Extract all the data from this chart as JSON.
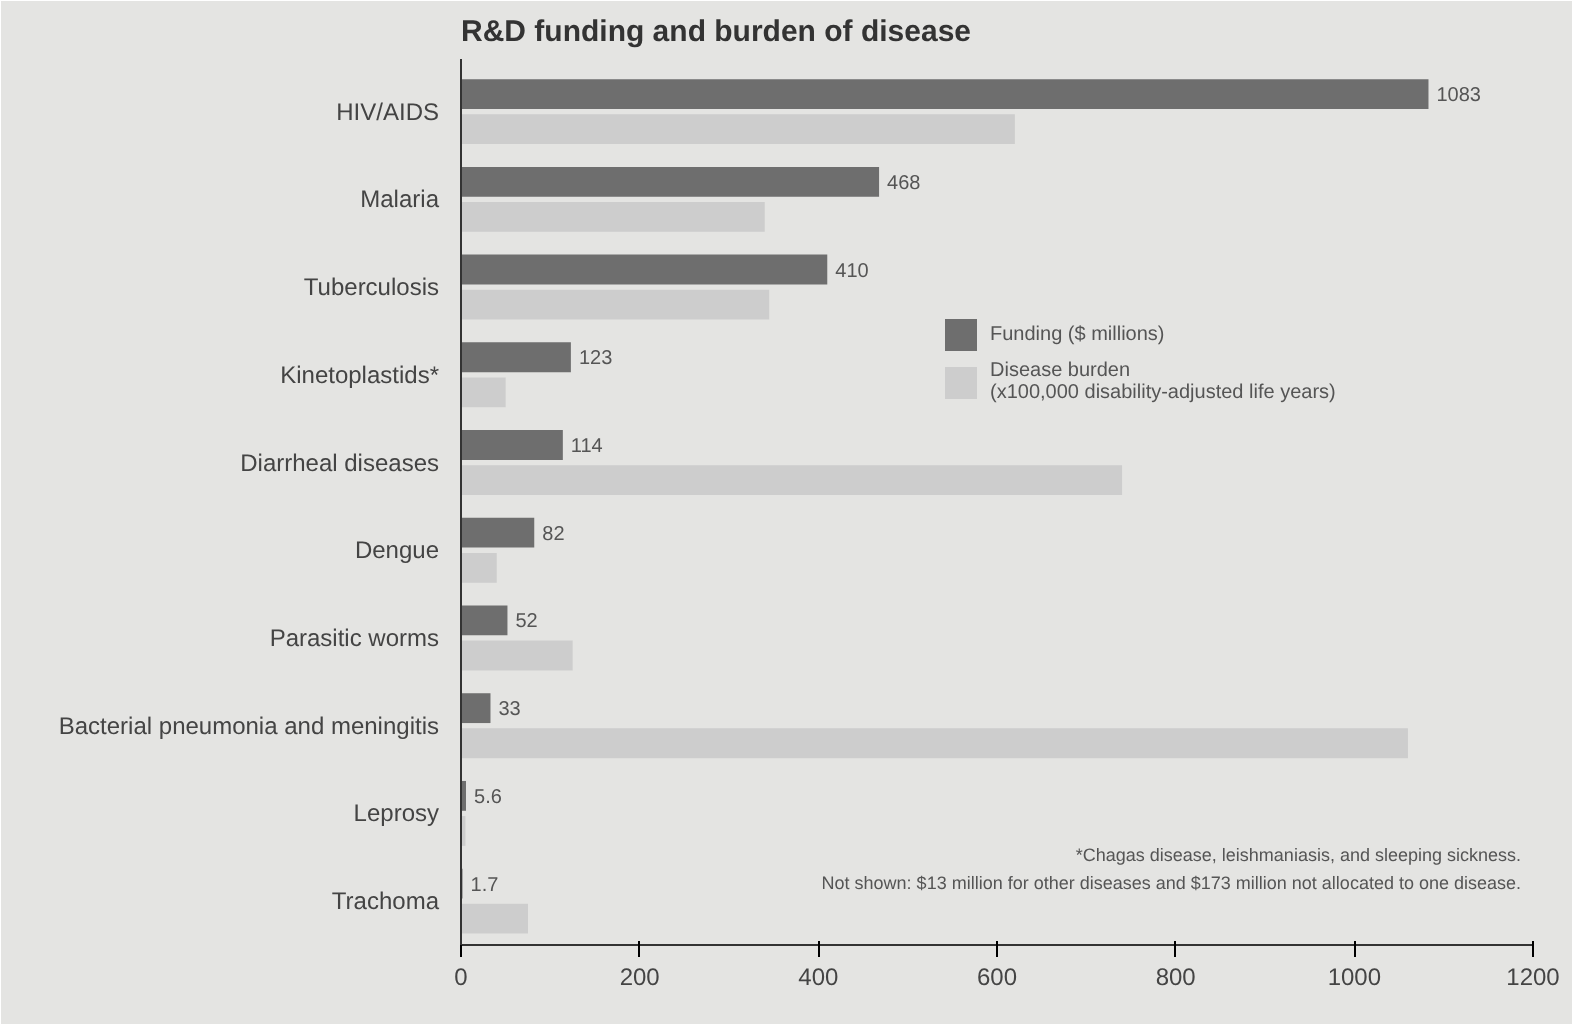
{
  "chart_data": {
    "type": "bar",
    "orientation": "horizontal",
    "title": "R&D funding and burden of disease",
    "categories": [
      "HIV/AIDS",
      "Malaria",
      "Tuberculosis",
      "Kinetoplastids*",
      "Diarrheal diseases",
      "Dengue",
      "Parasitic worms",
      "Bacterial pneumonia and meningitis",
      "Leprosy",
      "Trachoma"
    ],
    "series": [
      {
        "name": "Funding ($ millions)",
        "color": "#6e6e6e",
        "values": [
          1083,
          468,
          410,
          123,
          114,
          82,
          52,
          33,
          5.6,
          1.7
        ],
        "value_labels": [
          "1083",
          "468",
          "410",
          "123",
          "114",
          "82",
          "52",
          "33",
          "5.6",
          "1.7"
        ]
      },
      {
        "name": "Disease burden\n(x100,000 disability-adjusted life years)",
        "color": "#cdcdcd",
        "values": [
          620,
          340,
          345,
          50,
          740,
          40,
          125,
          1060,
          5,
          75
        ]
      }
    ],
    "xlim": [
      0,
      1200
    ],
    "xticks": [
      0,
      200,
      400,
      600,
      800,
      1000,
      1200
    ],
    "legend": "right",
    "annotations": [
      "*Chagas disease, leishmaniasis, and sleeping sickness.",
      "Not shown: $13 million for other diseases and $173 million not allocated to one disease."
    ]
  }
}
